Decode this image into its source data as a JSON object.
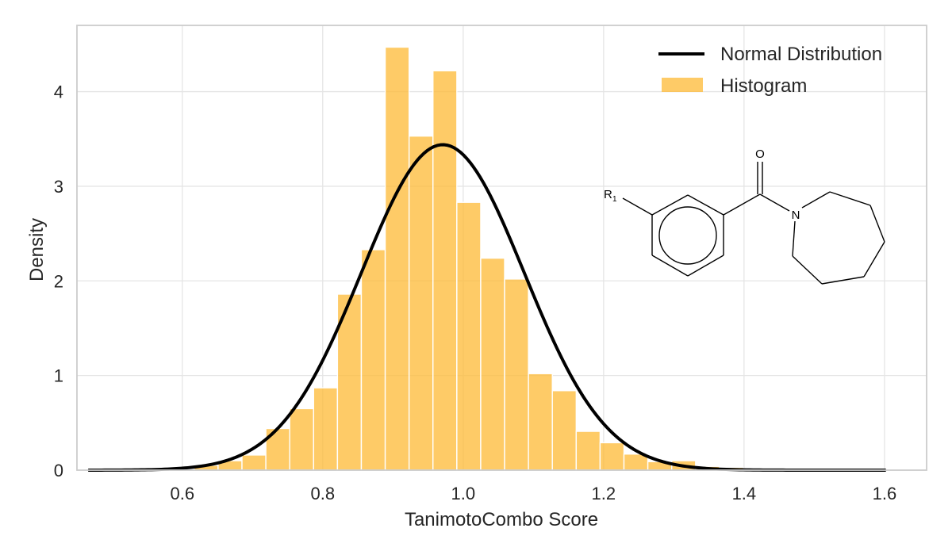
{
  "chart_data": {
    "type": "bar",
    "title": "",
    "xlabel": "TanimotoCombo Score",
    "ylabel": "Density",
    "xlim": [
      0.45,
      1.66
    ],
    "ylim": [
      0,
      4.7
    ],
    "xticks": [
      0.6,
      0.8,
      1.0,
      1.2,
      1.4,
      1.6
    ],
    "xtick_labels": [
      "0.6",
      "0.8",
      "1.0",
      "1.2",
      "1.4",
      "1.6"
    ],
    "yticks": [
      0,
      1,
      2,
      3,
      4
    ],
    "ytick_labels": [
      "0",
      "1",
      "2",
      "3",
      "4"
    ],
    "grid": true,
    "legend": {
      "placement": "top-right",
      "entries": [
        "Normal Distribution",
        "Histogram"
      ]
    },
    "histogram": {
      "name": "Histogram",
      "color": "#fdb934",
      "bin_edges": [
        0.583,
        0.617,
        0.651,
        0.685,
        0.719,
        0.753,
        0.787,
        0.821,
        0.855,
        0.889,
        0.923,
        0.957,
        0.991,
        1.025,
        1.059,
        1.093,
        1.127,
        1.161,
        1.195,
        1.229,
        1.263,
        1.297,
        1.331,
        1.365,
        1.399,
        1.433,
        1.467
      ],
      "densities": [
        0.01,
        0.05,
        0.1,
        0.16,
        0.44,
        0.65,
        0.87,
        1.86,
        2.33,
        4.47,
        3.53,
        4.22,
        2.83,
        2.24,
        2.02,
        1.02,
        0.84,
        0.41,
        0.29,
        0.17,
        0.09,
        0.1,
        0.04,
        0.03,
        0.02,
        0.01
      ]
    },
    "normal_distribution": {
      "name": "Normal Distribution",
      "color": "#000000",
      "mean": 0.971,
      "std": 0.116,
      "x_range": [
        0.466,
        1.602
      ]
    },
    "annotation": {
      "structure": "meta-substituted benzoyl azepane",
      "atom_labels": {
        "oxygen": "O",
        "nitrogen": "N",
        "r_group": "R",
        "r_group_index": "1"
      }
    }
  }
}
